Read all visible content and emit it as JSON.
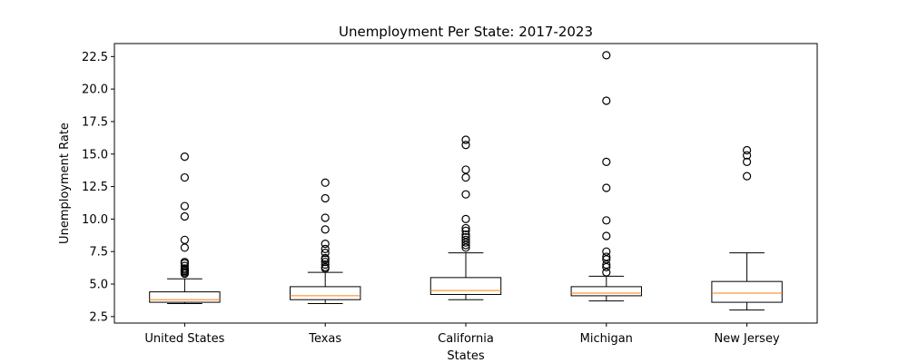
{
  "chart_data": {
    "type": "boxplot",
    "title": "Unemployment Per State: 2017-2023",
    "xlabel": "States",
    "ylabel": "Unemployment Rate",
    "ylim": [
      2.0,
      23.5
    ],
    "yticks": [
      2.5,
      5.0,
      7.5,
      10.0,
      12.5,
      15.0,
      17.5,
      20.0,
      22.5
    ],
    "ytick_labels": [
      "2.5",
      "5.0",
      "7.5",
      "10.0",
      "12.5",
      "15.0",
      "17.5",
      "20.0",
      "22.5"
    ],
    "grid": false,
    "median_color": "#ff7f0e",
    "box_color": "#000000",
    "categories": [
      "United States",
      "Texas",
      "California",
      "Michigan",
      "New Jersey"
    ],
    "boxes": [
      {
        "name": "United States",
        "whisker_low": 3.5,
        "q1": 3.6,
        "median": 3.8,
        "q3": 4.4,
        "whisker_high": 5.4,
        "outliers": [
          5.8,
          5.9,
          6.0,
          6.1,
          6.2,
          6.4,
          6.6,
          6.7,
          7.8,
          8.4,
          10.2,
          11.0,
          13.2,
          14.8
        ]
      },
      {
        "name": "Texas",
        "whisker_low": 3.5,
        "q1": 3.8,
        "median": 4.1,
        "q3": 4.8,
        "whisker_high": 5.9,
        "outliers": [
          6.2,
          6.3,
          6.5,
          6.7,
          6.9,
          7.0,
          7.4,
          7.7,
          8.1,
          9.2,
          10.1,
          11.6,
          12.8
        ]
      },
      {
        "name": "California",
        "whisker_low": 3.8,
        "q1": 4.2,
        "median": 4.5,
        "q3": 5.5,
        "whisker_high": 7.4,
        "outliers": [
          7.8,
          8.0,
          8.2,
          8.4,
          8.6,
          8.8,
          9.1,
          9.3,
          10.0,
          11.9,
          13.2,
          13.8,
          15.7,
          16.1
        ]
      },
      {
        "name": "Michigan",
        "whisker_low": 3.7,
        "q1": 4.1,
        "median": 4.3,
        "q3": 4.8,
        "whisker_high": 5.6,
        "outliers": [
          5.9,
          6.3,
          6.5,
          6.9,
          7.1,
          7.5,
          8.7,
          9.9,
          12.4,
          14.4,
          19.1,
          22.6
        ]
      },
      {
        "name": "New Jersey",
        "whisker_low": 3.0,
        "q1": 3.6,
        "median": 4.3,
        "q3": 5.2,
        "whisker_high": 7.4,
        "outliers": [
          13.3,
          14.4,
          14.9,
          15.3
        ]
      }
    ]
  }
}
